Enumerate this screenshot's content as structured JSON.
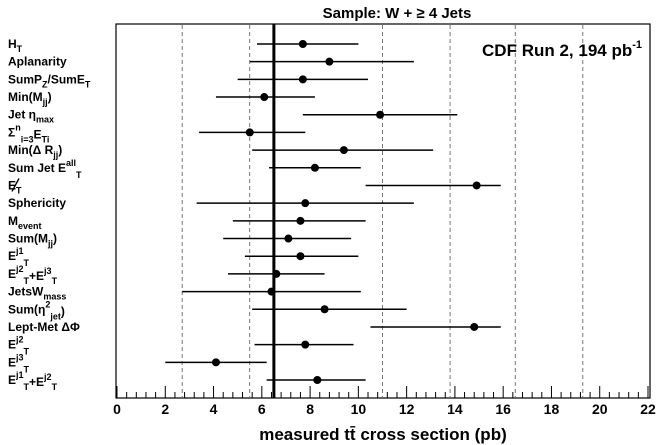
{
  "chart_data": {
    "type": "scatter",
    "title": "Sample: W + ≥ 4 Jets",
    "annotation": {
      "text": "CDF Run 2, 194 pb",
      "superscript": "-1"
    },
    "xlabel": "measured tt̄ cross section (pb)",
    "ylabel": "",
    "xlim": [
      0,
      22
    ],
    "x_ticks": [
      "0",
      "2",
      "4",
      "6",
      "8",
      "10",
      "12",
      "14",
      "16",
      "18",
      "20",
      "22"
    ],
    "grid": {
      "vertical_dashed_at": [
        2.7,
        5.5,
        11.0,
        13.8,
        16.5,
        19.3
      ]
    },
    "reference_line": 6.5,
    "points": [
      {
        "label": "H",
        "sub": "T",
        "x": 7.7,
        "xerr_low": 5.8,
        "xerr_high": 10.0
      },
      {
        "label": "Aplanarity",
        "x": 8.8,
        "xerr_low": 5.5,
        "xerr_high": 12.3
      },
      {
        "label": "SumP",
        "sub": "Z",
        "label2": "/SumE",
        "sub2": "T",
        "x": 7.7,
        "xerr_low": 5.0,
        "xerr_high": 10.4
      },
      {
        "label": "Min(M",
        "sub": "jj",
        "label2": ")",
        "x": 6.1,
        "xerr_low": 4.1,
        "xerr_high": 8.2
      },
      {
        "label": "Jet η",
        "sub": "max",
        "x": 10.9,
        "xerr_low": 7.7,
        "xerr_high": 14.1
      },
      {
        "label": "Σ",
        "sub": "i=3",
        "sup": "n",
        "label2": "E",
        "sub2": "Ti",
        "x": 5.5,
        "xerr_low": 3.4,
        "xerr_high": 7.8
      },
      {
        "label": "Min(Δ R",
        "sub": "jj",
        "label2": ")",
        "x": 9.4,
        "xerr_low": 5.6,
        "xerr_high": 13.1
      },
      {
        "label": "Sum Jet E",
        "sub": "T",
        "sup": "all",
        "x": 8.2,
        "xerr_low": 6.3,
        "xerr_high": 10.1
      },
      {
        "label": "E",
        "sub": "T",
        "slash": true,
        "x": 14.9,
        "xerr_low": 10.3,
        "xerr_high": 15.9
      },
      {
        "label": "Sphericity",
        "x": 7.8,
        "xerr_low": 3.3,
        "xerr_high": 12.3
      },
      {
        "label": "M",
        "sub": "event",
        "x": 7.6,
        "xerr_low": 4.8,
        "xerr_high": 10.3
      },
      {
        "label": "Sum(M",
        "sub": "jj",
        "label2": ")",
        "x": 7.1,
        "xerr_low": 4.4,
        "xerr_high": 9.7
      },
      {
        "label": "E",
        "sub": "T",
        "sup": "j1",
        "x": 7.6,
        "xerr_low": 5.3,
        "xerr_high": 10.0
      },
      {
        "label": "E",
        "sub": "T",
        "sup": "j2",
        "label2": "+E",
        "sub2": "T",
        "sup2": "j3",
        "x": 6.6,
        "xerr_low": 4.6,
        "xerr_high": 8.6
      },
      {
        "label": "JetsW",
        "sub": "mass",
        "x": 6.4,
        "xerr_low": 2.7,
        "xerr_high": 10.1
      },
      {
        "label": "Sum(η",
        "sub": "jet",
        "sup": "2",
        "label2": ")",
        "x": 8.6,
        "xerr_low": 5.6,
        "xerr_high": 12.0
      },
      {
        "label": "Lept-Met ΔΦ",
        "x": 14.8,
        "xerr_low": 10.5,
        "xerr_high": 15.9
      },
      {
        "label": "E",
        "sub": "T",
        "sup": "j2",
        "x": 7.8,
        "xerr_low": 5.7,
        "xerr_high": 9.8
      },
      {
        "label": "E",
        "sub": "T",
        "sup": "j3",
        "x": 4.1,
        "xerr_low": 2.0,
        "xerr_high": 6.2
      },
      {
        "label": "E",
        "sub": "T",
        "sup": "j1",
        "label2": "+E",
        "sub2": "T",
        "sup2": "j2",
        "x": 8.3,
        "xerr_low": 6.2,
        "xerr_high": 10.3
      }
    ]
  }
}
